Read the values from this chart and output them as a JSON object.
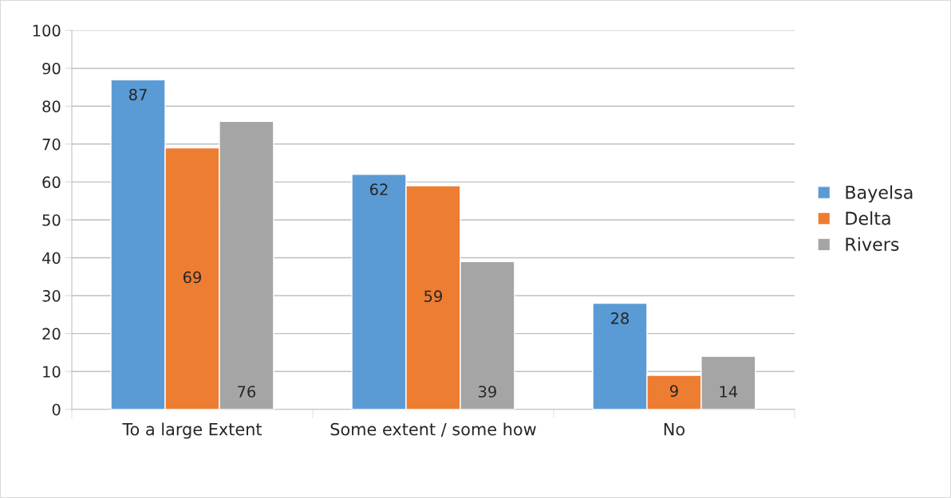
{
  "chart_data": {
    "type": "bar",
    "categories": [
      "To a large Extent",
      "Some extent / some how",
      "No"
    ],
    "series": [
      {
        "name": "Bayelsa",
        "color": "#5b9bd5",
        "values": [
          87,
          62,
          28
        ]
      },
      {
        "name": "Delta",
        "color": "#ed7d31",
        "values": [
          69,
          59,
          9
        ]
      },
      {
        "name": "Rivers",
        "color": "#a5a5a5",
        "values": [
          76,
          39,
          14
        ]
      }
    ],
    "ylim": [
      0,
      100
    ],
    "yticks": [
      0,
      10,
      20,
      30,
      40,
      50,
      60,
      70,
      80,
      90,
      100
    ],
    "grid": "y",
    "legend": "right",
    "data_labels": true
  }
}
